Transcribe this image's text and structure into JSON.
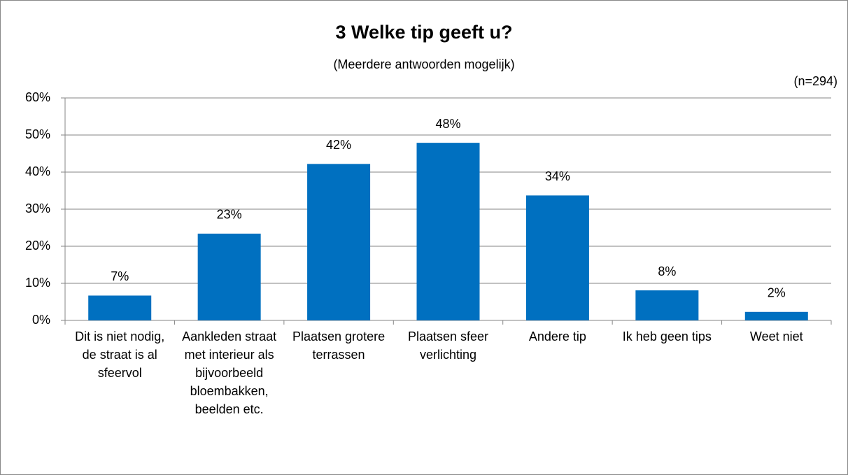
{
  "chart_data": {
    "type": "bar",
    "title": "3 Welke tip geeft u?",
    "subtitle": "(Meerdere antwoorden mogelijk)",
    "note": "(n=294)",
    "categories": [
      "Dit is niet nodig, de straat is al sfeervol",
      "Aankleden straat met interieur als bijvoorbeeld bloembakken, beelden etc.",
      "Plaatsen grotere terrassen",
      "Plaatsen sfeer verlichting",
      "Andere tip",
      "Ik heb geen tips",
      "Weet niet"
    ],
    "values": [
      6.7,
      23.4,
      42.2,
      47.9,
      33.7,
      8.1,
      2.3
    ],
    "value_labels": [
      "7%",
      "23%",
      "42%",
      "48%",
      "34%",
      "8%",
      "2%"
    ],
    "color": "#0070c0",
    "ylim": [
      0,
      60
    ],
    "yticks": [
      {
        "value": 0,
        "label": "0%"
      },
      {
        "value": 10,
        "label": "10%"
      },
      {
        "value": 20,
        "label": "20%"
      },
      {
        "value": 30,
        "label": "30%"
      },
      {
        "value": 40,
        "label": "40%"
      },
      {
        "value": 50,
        "label": "50%"
      },
      {
        "value": 60,
        "label": "60%"
      }
    ],
    "grid": true
  }
}
